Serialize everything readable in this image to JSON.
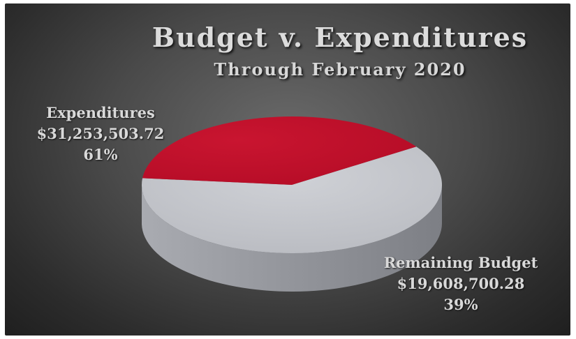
{
  "chart_data": {
    "type": "pie",
    "title": "Budget v. Expenditures",
    "subtitle": "Through February 2020",
    "slices": [
      {
        "label": "Expenditures",
        "amount": "$31,253,503.72",
        "percent_label": "61%",
        "value": 61,
        "color": "#c0c2c8"
      },
      {
        "label": "Remaining Budget",
        "amount": "$19,608,700.28",
        "percent_label": "39%",
        "value": 39,
        "color": "#c00d2a"
      }
    ],
    "style": "3d",
    "background": "#3c3c3c"
  }
}
